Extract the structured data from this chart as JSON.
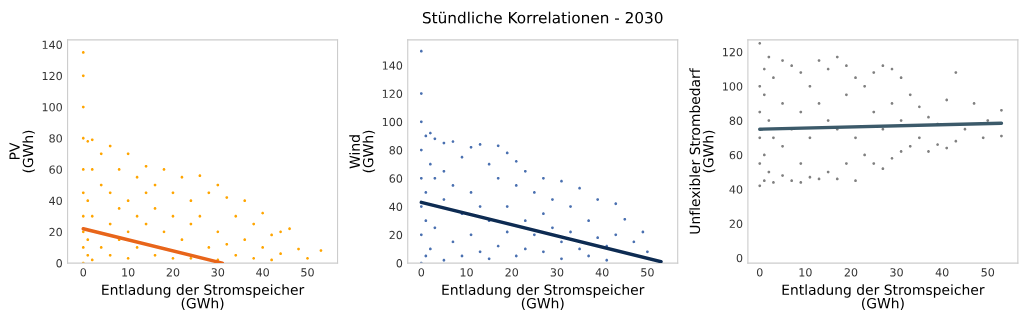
{
  "chart_data": [
    {
      "type": "scatter",
      "xlabel": "Entladung der Stromspeicher\n(GWh)",
      "ylabel": "PV\n(GWh)",
      "xlim": [
        -3.5,
        56.7
      ],
      "ylim": [
        0,
        143
      ],
      "xticks": [
        0,
        10,
        20,
        30,
        40,
        50
      ],
      "yticks": [
        0,
        20,
        40,
        60,
        80,
        100,
        120,
        140
      ],
      "grid": false,
      "series": [
        {
          "marker": "circle",
          "color": "#ffa500",
          "x": [
            0,
            0,
            0,
            0,
            0,
            0,
            0,
            0,
            0,
            0,
            1,
            1,
            1,
            1,
            2,
            2,
            2,
            2,
            4,
            4,
            4,
            6,
            6,
            6,
            6,
            8,
            8,
            8,
            10,
            10,
            10,
            10,
            12,
            12,
            12,
            14,
            14,
            14,
            16,
            16,
            16,
            18,
            18,
            20,
            20,
            20,
            22,
            22,
            24,
            24,
            24,
            26,
            26,
            28,
            28,
            30,
            30,
            30,
            32,
            32,
            34,
            34,
            36,
            36,
            38,
            38,
            40,
            40,
            42,
            42,
            44,
            44,
            46,
            48,
            50,
            53
          ],
          "values": [
            0,
            10,
            20,
            30,
            45,
            60,
            80,
            100,
            120,
            135,
            5,
            40,
            78,
            15,
            2,
            30,
            60,
            79,
            10,
            50,
            70,
            25,
            75,
            5,
            45,
            15,
            60,
            35,
            3,
            70,
            40,
            20,
            55,
            10,
            30,
            62,
            25,
            45,
            5,
            50,
            35,
            60,
            20,
            3,
            45,
            30,
            55,
            15,
            40,
            3,
            25,
            56,
            30,
            10,
            45,
            50,
            20,
            2,
            42,
            12,
            30,
            5,
            40,
            15,
            25,
            3,
            32,
            10,
            18,
            2,
            20,
            6,
            22,
            9,
            3,
            8
          ]
        },
        {
          "type": "line",
          "color": "#e8651a",
          "x": [
            0,
            31
          ],
          "values": [
            22,
            0
          ]
        }
      ]
    },
    {
      "type": "scatter",
      "title": "Stündliche Korrelationen - 2030",
      "xlabel": "Entladung der Stromspeicher\n(GWh)",
      "ylabel": "Wind\n(GWh)",
      "xlim": [
        -3,
        56.7
      ],
      "ylim": [
        0,
        158
      ],
      "xticks": [
        0,
        10,
        20,
        30,
        40,
        50
      ],
      "yticks": [
        0,
        20,
        40,
        60,
        80,
        100,
        120,
        140
      ],
      "grid": false,
      "series": [
        {
          "marker": "circle",
          "color": "#4a70b0",
          "x": [
            0,
            0,
            0,
            0,
            0,
            0,
            0,
            0,
            1,
            1,
            1,
            1,
            2,
            2,
            2,
            3,
            3,
            3,
            5,
            5,
            5,
            5,
            7,
            7,
            7,
            9,
            9,
            9,
            11,
            11,
            11,
            13,
            13,
            13,
            15,
            15,
            15,
            17,
            17,
            17,
            19,
            19,
            19,
            21,
            21,
            21,
            23,
            23,
            23,
            25,
            25,
            27,
            27,
            27,
            29,
            29,
            31,
            31,
            31,
            33,
            33,
            35,
            35,
            37,
            37,
            39,
            39,
            41,
            41,
            43,
            43,
            45,
            47,
            49,
            50,
            53
          ],
          "values": [
            0,
            20,
            40,
            60,
            80,
            100,
            120,
            150,
            5,
            50,
            90,
            30,
            10,
            70,
            92,
            25,
            60,
            88,
            2,
            45,
            85,
            65,
            15,
            55,
            86,
            35,
            75,
            5,
            20,
            82,
            50,
            8,
            84,
            40,
            30,
            70,
            3,
            12,
            60,
            83,
            40,
            78,
            22,
            5,
            55,
            72,
            30,
            65,
            10,
            50,
            20,
            60,
            35,
            8,
            45,
            25,
            58,
            15,
            3,
            40,
            22,
            53,
            10,
            30,
            5,
            45,
            18,
            12,
            2,
            42,
            20,
            31,
            15,
            22,
            8,
            1
          ]
        },
        {
          "type": "line",
          "color": "#0d2b52",
          "x": [
            0,
            53
          ],
          "values": [
            43,
            1
          ]
        }
      ]
    },
    {
      "type": "scatter",
      "xlabel": "Entladung der Stromspeicher\n(GWh)",
      "ylabel": "Unflexibler Strombedarf\n(GWh)",
      "xlim": [
        -2.6,
        56.6
      ],
      "ylim": [
        -3,
        127
      ],
      "xticks": [
        0,
        10,
        20,
        30,
        40,
        50
      ],
      "yticks": [
        0,
        20,
        40,
        60,
        80,
        100,
        120
      ],
      "grid": false,
      "series": [
        {
          "marker": "circle",
          "color": "#808080",
          "x": [
            0,
            0,
            0,
            0,
            0,
            0,
            1,
            1,
            1,
            1,
            2,
            2,
            2,
            3,
            3,
            3,
            5,
            5,
            5,
            5,
            7,
            7,
            7,
            9,
            9,
            9,
            9,
            11,
            11,
            11,
            13,
            13,
            13,
            15,
            15,
            15,
            17,
            17,
            17,
            19,
            19,
            19,
            21,
            21,
            21,
            23,
            23,
            25,
            25,
            25,
            27,
            27,
            27,
            29,
            29,
            29,
            31,
            31,
            31,
            33,
            33,
            35,
            35,
            37,
            37,
            39,
            39,
            41,
            41,
            43,
            43,
            45,
            47,
            49,
            50,
            53,
            53
          ],
          "values": [
            42,
            55,
            70,
            85,
            100,
            125,
            45,
            60,
            95,
            110,
            50,
            80,
            117,
            44,
            70,
            105,
            48,
            65,
            90,
            115,
            45,
            75,
            112,
            44,
            55,
            85,
            108,
            47,
            70,
            100,
            46,
            90,
            115,
            50,
            80,
            110,
            46,
            75,
            117,
            55,
            95,
            112,
            45,
            70,
            105,
            60,
            100,
            55,
            85,
            108,
            52,
            75,
            112,
            58,
            90,
            110,
            62,
            80,
            105,
            65,
            95,
            70,
            88,
            62,
            82,
            66,
            78,
            64,
            92,
            68,
            108,
            75,
            90,
            70,
            80,
            86,
            71
          ]
        },
        {
          "type": "line",
          "color": "#3c5a6a",
          "x": [
            0,
            53
          ],
          "values": [
            75,
            78.5
          ]
        }
      ]
    }
  ]
}
